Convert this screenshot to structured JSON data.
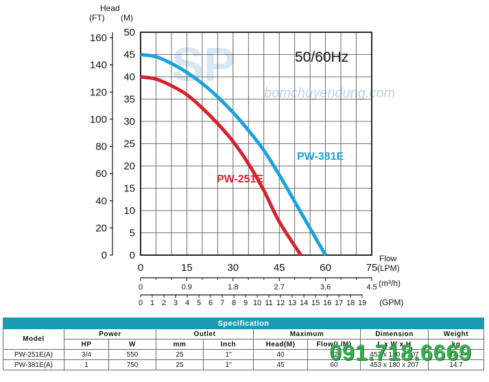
{
  "chart_data": {
    "type": "line",
    "title": "50/60Hz",
    "y_axis_left": {
      "label": "Head",
      "unit": "(FT)",
      "ticks": [
        "0",
        "20",
        "40",
        "60",
        "80",
        "100",
        "120",
        "140",
        "160"
      ]
    },
    "y_axis_right": {
      "unit": "(M)",
      "ticks": [
        "0",
        "5",
        "10",
        "15",
        "20",
        "25",
        "30",
        "35",
        "40",
        "45",
        "50"
      ],
      "ylim": [
        0,
        50
      ]
    },
    "x_axis_lpm": {
      "label": "Flow",
      "unit": "(LPM)",
      "ticks": [
        "0",
        "15",
        "30",
        "45",
        "60",
        "75"
      ],
      "xlim": [
        0,
        75
      ]
    },
    "x_axis_m3h": {
      "unit": "(m³/h)",
      "ticks": [
        "0",
        "0.9",
        "1.8",
        "2.7",
        "3.6",
        "4.5"
      ]
    },
    "x_axis_gpm": {
      "unit": "(GPM)",
      "ticks": [
        "0",
        "1",
        "2",
        "3",
        "4",
        "5",
        "6",
        "7",
        "8",
        "9",
        "10",
        "11",
        "12",
        "13",
        "14",
        "15",
        "16",
        "17",
        "18",
        "19"
      ]
    },
    "grid": true,
    "series": [
      {
        "name": "PW-251E",
        "color": "#d7212b",
        "points": [
          [
            0,
            40
          ],
          [
            5,
            39.5
          ],
          [
            10,
            38
          ],
          [
            15,
            36
          ],
          [
            20,
            33
          ],
          [
            25,
            29.5
          ],
          [
            30,
            25.5
          ],
          [
            35,
            20.5
          ],
          [
            40,
            14.5
          ],
          [
            45,
            7.5
          ],
          [
            52,
            0
          ]
        ]
      },
      {
        "name": "PW-381E",
        "color": "#1aa3dc",
        "points": [
          [
            0,
            45
          ],
          [
            5,
            44.5
          ],
          [
            10,
            43
          ],
          [
            15,
            41
          ],
          [
            20,
            38.5
          ],
          [
            25,
            35.5
          ],
          [
            30,
            32
          ],
          [
            35,
            28
          ],
          [
            40,
            23.5
          ],
          [
            45,
            18
          ],
          [
            50,
            12
          ],
          [
            55,
            6
          ],
          [
            60,
            0
          ]
        ]
      }
    ]
  },
  "watermark": {
    "logo": "SP",
    "site": "bomchuyendung.com",
    "phone": "091.718.6669"
  },
  "spec": {
    "title": "Specification",
    "headers": {
      "model": "Model",
      "power": "Power",
      "outlet": "Outlet",
      "maximum": "Maximum",
      "dimension": "Dimension",
      "weight": "Weight"
    },
    "subheaders": {
      "hp": "HP",
      "w": "W",
      "mm": "mm",
      "inch": "Inch",
      "head": "Head(M)",
      "flow": "Flow(L/M)",
      "dim": "L x W x H",
      "kg": "kg"
    },
    "rows": [
      {
        "model": "PW-251E(A)",
        "hp": "3/4",
        "w": "550",
        "mm": "25",
        "inch": "1\"",
        "head": "40",
        "flow": "52",
        "dim": "453 x 180 x 207",
        "kg": "14.3"
      },
      {
        "model": "PW-381E(A)",
        "hp": "1",
        "w": "750",
        "mm": "25",
        "inch": "1\"",
        "head": "45",
        "flow": "60",
        "dim": "453 x 180 x 207",
        "kg": "14.7"
      }
    ]
  }
}
